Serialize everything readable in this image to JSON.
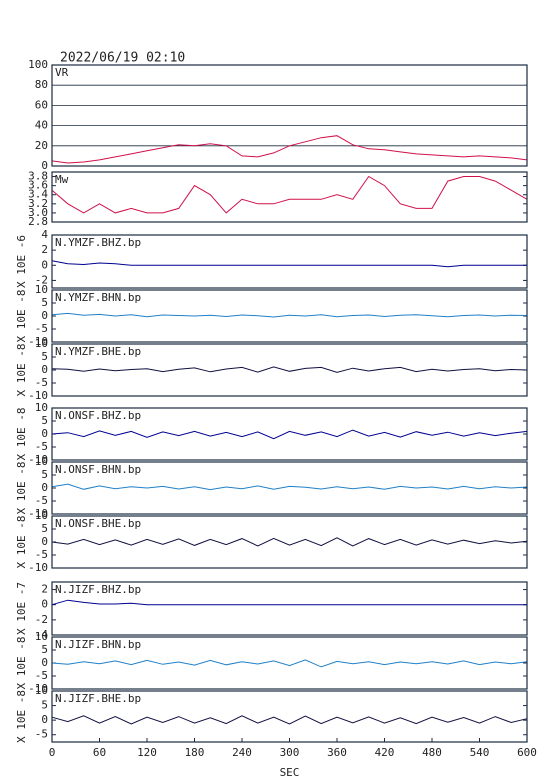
{
  "timestamp": "2022/06/19 02:10",
  "chart_data": [
    {
      "type": "line",
      "title": "VR",
      "color": "#d0104a",
      "grid": true,
      "xlim": [
        0,
        600
      ],
      "ylim": [
        0,
        100
      ],
      "yticks": [
        0,
        20,
        40,
        60,
        80,
        100
      ],
      "x": [
        0,
        20,
        40,
        60,
        80,
        100,
        120,
        140,
        160,
        180,
        200,
        220,
        240,
        260,
        280,
        300,
        320,
        340,
        360,
        380,
        400,
        420,
        440,
        460,
        480,
        500,
        520,
        540,
        560,
        580,
        600
      ],
      "values": [
        5,
        3,
        4,
        6,
        9,
        12,
        15,
        18,
        21,
        20,
        22,
        20,
        10,
        9,
        13,
        20,
        24,
        28,
        30,
        21,
        17,
        16,
        14,
        12,
        11,
        10,
        9,
        10,
        9,
        8,
        6
      ]
    },
    {
      "type": "line",
      "title": "Mw",
      "color": "#d0104a",
      "xlim": [
        0,
        600
      ],
      "ylim": [
        2.8,
        3.9
      ],
      "yticks": [
        2.8,
        {
          "value": 3,
          "label": "3.0"
        },
        3.2,
        3.4,
        3.6,
        3.8
      ],
      "x": [
        0,
        20,
        40,
        60,
        80,
        100,
        120,
        140,
        160,
        180,
        200,
        220,
        240,
        260,
        280,
        300,
        320,
        340,
        360,
        380,
        400,
        420,
        440,
        460,
        480,
        500,
        520,
        540,
        560,
        580,
        600
      ],
      "values": [
        3.5,
        3.2,
        3.0,
        3.2,
        3.0,
        3.1,
        3.0,
        3.0,
        3.1,
        3.6,
        3.4,
        3.0,
        3.3,
        3.2,
        3.2,
        3.3,
        3.3,
        3.3,
        3.4,
        3.3,
        3.8,
        3.6,
        3.2,
        3.1,
        3.1,
        3.7,
        3.8,
        3.8,
        3.7,
        3.5,
        3.3
      ]
    },
    {
      "type": "line",
      "title": "N.YMZF.BHZ.bp",
      "ylabel": "X 10E -6",
      "color": "#000090",
      "xlim": [
        0,
        600
      ],
      "ylim": [
        -3,
        4
      ],
      "yticks": [
        -2,
        0,
        2,
        4
      ],
      "x": [
        0,
        20,
        40,
        60,
        80,
        100,
        120,
        140,
        160,
        180,
        200,
        220,
        240,
        260,
        280,
        300,
        320,
        340,
        360,
        380,
        400,
        420,
        440,
        460,
        480,
        500,
        520,
        540,
        560,
        580,
        600
      ],
      "values": [
        0.6,
        0.2,
        0.1,
        0.3,
        0.2,
        0,
        0,
        0,
        0,
        0,
        0,
        0,
        0,
        0,
        0,
        0,
        0,
        0,
        0,
        0,
        0,
        0,
        0,
        0,
        0,
        -0.2,
        0,
        0,
        0,
        0,
        0
      ]
    },
    {
      "type": "line",
      "title": "N.YMZF.BHN.bp",
      "ylabel": "X 10E -8",
      "color": "#2080c8",
      "xlim": [
        0,
        600
      ],
      "ylim": [
        -10,
        10
      ],
      "yticks": [
        -10,
        -5,
        0,
        5,
        10
      ],
      "x": [
        0,
        20,
        40,
        60,
        80,
        100,
        120,
        140,
        160,
        180,
        200,
        220,
        240,
        260,
        280,
        300,
        320,
        340,
        360,
        380,
        400,
        420,
        440,
        460,
        480,
        500,
        520,
        540,
        560,
        580,
        600
      ],
      "values": [
        0.5,
        1,
        0.3,
        0.6,
        0,
        0.5,
        -0.3,
        0.4,
        0.2,
        0,
        0.3,
        -0.2,
        0.4,
        0.1,
        -0.4,
        0.3,
        0,
        0.5,
        -0.3,
        0.2,
        0.4,
        -0.2,
        0.3,
        0.5,
        0.1,
        -0.3,
        0.2,
        0.4,
        0,
        0.3,
        0.2
      ]
    },
    {
      "type": "line",
      "title": "N.YMZF.BHE.bp",
      "ylabel": "X 10E -8",
      "color": "#101040",
      "xlim": [
        0,
        600
      ],
      "ylim": [
        -10,
        10
      ],
      "yticks": [
        -10,
        -5,
        0,
        5,
        10
      ],
      "x": [
        0,
        20,
        40,
        60,
        80,
        100,
        120,
        140,
        160,
        180,
        200,
        220,
        240,
        260,
        280,
        300,
        320,
        340,
        360,
        380,
        400,
        420,
        440,
        460,
        480,
        500,
        520,
        540,
        560,
        580,
        600
      ],
      "values": [
        0.5,
        0.3,
        -0.5,
        0.4,
        -0.3,
        0.2,
        0.5,
        -0.6,
        0.3,
        0.8,
        -0.7,
        0.4,
        1,
        -0.8,
        1.2,
        -0.5,
        0.6,
        1,
        -0.9,
        0.7,
        -0.4,
        0.5,
        1,
        -0.6,
        0.3,
        -0.4,
        0.2,
        0.5,
        -0.3,
        0.2,
        0
      ]
    },
    {
      "type": "line",
      "title": "N.ONSF.BHZ.bp",
      "ylabel": "X 10E -8",
      "color": "#000090",
      "xlim": [
        0,
        600
      ],
      "ylim": [
        -10,
        10
      ],
      "yticks": [
        -10,
        -5,
        0,
        5,
        10
      ],
      "x": [
        0,
        20,
        40,
        60,
        80,
        100,
        120,
        140,
        160,
        180,
        200,
        220,
        240,
        260,
        280,
        300,
        320,
        340,
        360,
        380,
        400,
        420,
        440,
        460,
        480,
        500,
        520,
        540,
        560,
        580,
        600
      ],
      "values": [
        0,
        0.5,
        -1,
        1.2,
        -0.5,
        1,
        -1.3,
        0.8,
        -0.6,
        1,
        -0.8,
        0.6,
        -1,
        0.8,
        -1.8,
        1,
        -0.5,
        0.8,
        -1,
        1.5,
        -0.8,
        0.6,
        -1.2,
        0.9,
        -0.5,
        0.7,
        -0.8,
        0.5,
        -0.6,
        0.3,
        1
      ]
    },
    {
      "type": "line",
      "title": "N.ONSF.BHN.bp",
      "ylabel": "X 10E -8",
      "color": "#2080c8",
      "xlim": [
        0,
        600
      ],
      "ylim": [
        -10,
        10
      ],
      "yticks": [
        -10,
        -5,
        0,
        5,
        10
      ],
      "x": [
        0,
        20,
        40,
        60,
        80,
        100,
        120,
        140,
        160,
        180,
        200,
        220,
        240,
        260,
        280,
        300,
        320,
        340,
        360,
        380,
        400,
        420,
        440,
        460,
        480,
        500,
        520,
        540,
        560,
        580,
        600
      ],
      "values": [
        0.5,
        1.5,
        -0.5,
        0.8,
        -0.3,
        0.5,
        0,
        0.6,
        -0.4,
        0.5,
        -0.6,
        0.4,
        -0.3,
        0.8,
        -0.5,
        0.6,
        0.3,
        -0.4,
        0.5,
        -0.3,
        0.4,
        -0.5,
        0.6,
        0,
        0.4,
        -0.4,
        0.6,
        -0.3,
        0.5,
        0,
        0.4
      ]
    },
    {
      "type": "line",
      "title": "N.ONSF.BHE.bp",
      "ylabel": "X 10E -8",
      "color": "#101040",
      "xlim": [
        0,
        600
      ],
      "ylim": [
        -10,
        10
      ],
      "yticks": [
        -10,
        -5,
        0,
        5,
        10
      ],
      "x": [
        0,
        20,
        40,
        60,
        80,
        100,
        120,
        140,
        160,
        180,
        200,
        220,
        240,
        260,
        280,
        300,
        320,
        340,
        360,
        380,
        400,
        420,
        440,
        460,
        480,
        500,
        520,
        540,
        560,
        580,
        600
      ],
      "values": [
        0,
        -0.8,
        1,
        -1,
        0.8,
        -1.2,
        1,
        -0.9,
        1.2,
        -1.3,
        1,
        -1,
        1.3,
        -1.5,
        1.4,
        -1.2,
        1,
        -1.4,
        1.6,
        -1.5,
        1.3,
        -1,
        1,
        -1.2,
        0.8,
        -0.8,
        0.7,
        -0.6,
        0.5,
        -0.4,
        0.3
      ]
    },
    {
      "type": "line",
      "title": "N.JIZF.BHZ.bp",
      "ylabel": "X 10E -7",
      "color": "#000090",
      "xlim": [
        0,
        600
      ],
      "ylim": [
        -4,
        3
      ],
      "yticks": [
        -4,
        -2,
        0,
        2
      ],
      "x": [
        0,
        20,
        40,
        60,
        80,
        100,
        120,
        140,
        160,
        180,
        200,
        220,
        240,
        260,
        280,
        300,
        320,
        340,
        360,
        380,
        400,
        420,
        440,
        460,
        480,
        500,
        520,
        540,
        560,
        580,
        600
      ],
      "values": [
        0,
        0.6,
        0.3,
        0.1,
        0.1,
        0.2,
        0,
        0,
        0,
        0,
        0,
        0,
        0,
        0,
        0,
        0,
        0,
        0,
        0,
        0,
        0,
        0,
        0,
        0,
        0,
        0,
        0,
        0,
        0,
        0,
        0
      ]
    },
    {
      "type": "line",
      "title": "N.JIZF.BHN.bp",
      "ylabel": "X 10E -8",
      "color": "#2080c8",
      "xlim": [
        0,
        600
      ],
      "ylim": [
        -10,
        10
      ],
      "yticks": [
        -10,
        -5,
        0,
        5,
        10
      ],
      "x": [
        0,
        20,
        40,
        60,
        80,
        100,
        120,
        140,
        160,
        180,
        200,
        220,
        240,
        260,
        280,
        300,
        320,
        340,
        360,
        380,
        400,
        420,
        440,
        460,
        480,
        500,
        520,
        540,
        560,
        580,
        600
      ],
      "values": [
        0,
        -0.5,
        0.5,
        -0.3,
        0.8,
        -0.6,
        1,
        -0.5,
        0.4,
        -0.8,
        1,
        -0.7,
        0.5,
        -0.4,
        0.8,
        -1,
        1.2,
        -1.5,
        0.6,
        -0.3,
        0.5,
        -0.6,
        0.4,
        -0.3,
        0.5,
        -0.4,
        0.8,
        -0.6,
        0.4,
        -0.3,
        0.5
      ]
    },
    {
      "type": "line",
      "title": "N.JIZF.BHE.bp",
      "ylabel": "X 10E -8",
      "xlabel": "SEC",
      "color": "#101040",
      "xlim": [
        0,
        600
      ],
      "ylim": [
        -7.5,
        10
      ],
      "yticks": [
        -5,
        0,
        5,
        10
      ],
      "xticks": [
        0,
        60,
        120,
        180,
        240,
        300,
        360,
        420,
        480,
        540,
        600
      ],
      "x": [
        0,
        20,
        40,
        60,
        80,
        100,
        120,
        140,
        160,
        180,
        200,
        220,
        240,
        260,
        280,
        300,
        320,
        340,
        360,
        380,
        400,
        420,
        440,
        460,
        480,
        500,
        520,
        540,
        560,
        580,
        600
      ],
      "values": [
        1,
        -0.5,
        1.5,
        -1,
        1.2,
        -1.3,
        1,
        -0.8,
        1.2,
        -1,
        0.8,
        -1.2,
        1.5,
        -1,
        1,
        -1.3,
        1.4,
        -1.2,
        1,
        -0.9,
        1.1,
        -1,
        0.8,
        -1.2,
        1,
        -0.7,
        0.9,
        -1,
        1.2,
        -0.8,
        0.5
      ]
    }
  ]
}
